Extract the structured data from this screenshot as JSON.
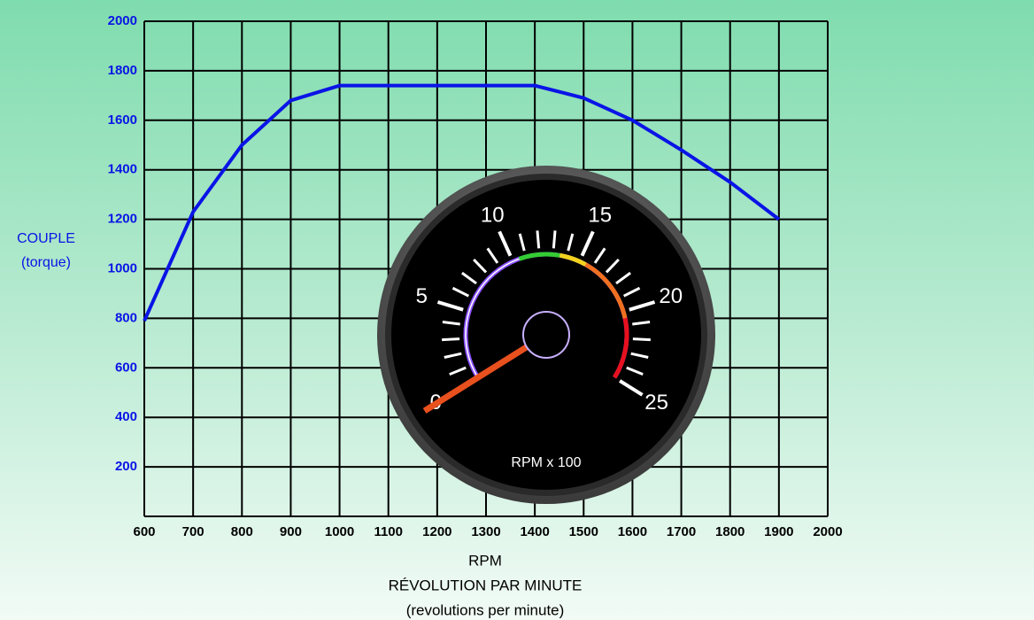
{
  "chart_data": [
    {
      "type": "line",
      "y_label": [
        "COUPLE",
        "(torque)"
      ],
      "x_label": [
        "RPM",
        "RÉVOLUTION PAR MINUTE",
        "(revolutions per minute)"
      ],
      "x": [
        600,
        700,
        800,
        900,
        1000,
        1100,
        1200,
        1300,
        1400,
        1500,
        1600,
        1700,
        1800,
        1900
      ],
      "values": [
        790,
        1230,
        1500,
        1680,
        1740,
        1740,
        1740,
        1740,
        1740,
        1690,
        1600,
        1480,
        1350,
        1200
      ],
      "color": "#0a14e6",
      "xlim": [
        600,
        2000
      ],
      "xticks": [
        600,
        700,
        800,
        900,
        1000,
        1100,
        1200,
        1300,
        1400,
        1500,
        1600,
        1700,
        1800,
        1900,
        2000
      ],
      "ylim": [
        0,
        2000
      ],
      "yticks": [
        200,
        400,
        600,
        800,
        1000,
        1200,
        1400,
        1600,
        1800,
        2000
      ],
      "grid": true
    },
    {
      "type": "gauge",
      "unit_label": "RPM x 100",
      "range": [
        0,
        25
      ],
      "major_ticks": [
        0,
        5,
        10,
        15,
        20,
        25
      ],
      "minor_ticks": [
        1,
        2,
        3,
        4,
        6,
        7,
        8,
        9,
        11,
        12,
        13,
        14,
        16,
        17,
        18,
        19,
        21,
        22,
        23,
        24
      ],
      "bands": [
        {
          "from": 10.5,
          "to": 13.5,
          "color": "#33cc33"
        },
        {
          "from": 13.5,
          "to": 15.5,
          "color": "#f2d21e"
        },
        {
          "from": 15.5,
          "to": 20.5,
          "color": "#f07020"
        },
        {
          "from": 20.5,
          "to": 25,
          "color": "#e8101e"
        }
      ],
      "value": 0,
      "needle_color": "#e8501e"
    }
  ]
}
